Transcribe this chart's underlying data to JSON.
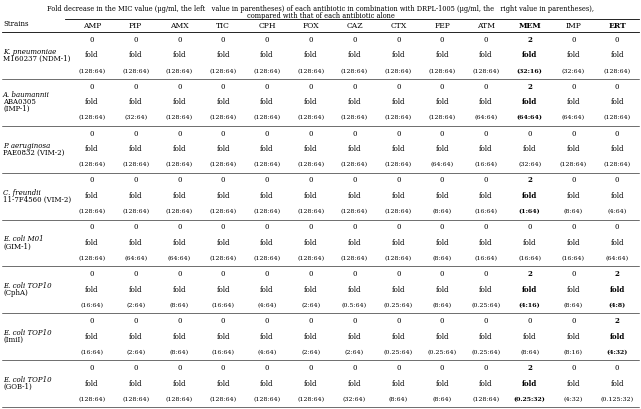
{
  "title_line1": "Fold decrease in the MIC value (μg/ml, the left   value in parentheses) of each antibiotic in combination with DRPL-1005 (μg/ml, the   right value in parentheses),",
  "title_line2": "compared with that of each antibiotic alone",
  "col_headers": [
    "AMP",
    "PIP",
    "AMX",
    "TIC",
    "CPH",
    "FOX",
    "CAZ",
    "CTX",
    "FEP",
    "ATM",
    "MEM",
    "IMP",
    "ERT"
  ],
  "col_headers_bold": [
    false,
    false,
    false,
    false,
    false,
    false,
    false,
    false,
    false,
    false,
    true,
    false,
    true
  ],
  "strains": [
    {
      "name_lines": [
        "K. pneumoniae",
        "M160237 (NDM-1)"
      ],
      "name_italic": [
        true,
        false
      ],
      "row1": [
        "0",
        "0",
        "0",
        "0",
        "0",
        "0",
        "0",
        "0",
        "0",
        "0",
        "2",
        "0",
        "0"
      ],
      "row1_bold": [
        false,
        false,
        false,
        false,
        false,
        false,
        false,
        false,
        false,
        false,
        true,
        false,
        false
      ],
      "row2": [
        "fold",
        "fold",
        "fold",
        "fold",
        "fold",
        "fold",
        "fold",
        "fold",
        "fold",
        "fold",
        "fold",
        "fold",
        "fold"
      ],
      "row2_bold": [
        false,
        false,
        false,
        false,
        false,
        false,
        false,
        false,
        false,
        false,
        true,
        false,
        false
      ],
      "row3": [
        "(128:64)",
        "(128:64)",
        "(128:64)",
        "(128:64)",
        "(128:64)",
        "(128:64)",
        "(128:64)",
        "(128:64)",
        "(128:64)",
        "(128:64)",
        "(32:16)",
        "(32:64)",
        "(128:64)"
      ],
      "row3_bold": [
        false,
        false,
        false,
        false,
        false,
        false,
        false,
        false,
        false,
        false,
        true,
        false,
        false
      ]
    },
    {
      "name_lines": [
        "A. baumannii",
        "ABA0305",
        "(IMP-1)"
      ],
      "name_italic": [
        true,
        false,
        false
      ],
      "row1": [
        "0",
        "0",
        "0",
        "0",
        "0",
        "0",
        "0",
        "0",
        "0",
        "0",
        "2",
        "0",
        "0"
      ],
      "row1_bold": [
        false,
        false,
        false,
        false,
        false,
        false,
        false,
        false,
        false,
        false,
        true,
        false,
        false
      ],
      "row2": [
        "fold",
        "fold",
        "fold",
        "fold",
        "fold",
        "fold",
        "fold",
        "fold",
        "fold",
        "fold",
        "fold",
        "fold",
        "fold"
      ],
      "row2_bold": [
        false,
        false,
        false,
        false,
        false,
        false,
        false,
        false,
        false,
        false,
        true,
        false,
        false
      ],
      "row3": [
        "(128:64)",
        "(32:64)",
        "(128:64)",
        "(128:64)",
        "(128:64)",
        "(128:64)",
        "(128:64)",
        "(128:64)",
        "(128:64)",
        "(64:64)",
        "(64:64)",
        "(64:64)",
        "(128:64)"
      ],
      "row3_bold": [
        false,
        false,
        false,
        false,
        false,
        false,
        false,
        false,
        false,
        false,
        true,
        false,
        false
      ]
    },
    {
      "name_lines": [
        "P. aeruginosa",
        "PAE0832 (VIM-2)"
      ],
      "name_italic": [
        true,
        false
      ],
      "row1": [
        "0",
        "0",
        "0",
        "0",
        "0",
        "0",
        "0",
        "0",
        "0",
        "0",
        "0",
        "0",
        "0"
      ],
      "row1_bold": [
        false,
        false,
        false,
        false,
        false,
        false,
        false,
        false,
        false,
        false,
        false,
        false,
        false
      ],
      "row2": [
        "fold",
        "fold",
        "fold",
        "fold",
        "fold",
        "fold",
        "fold",
        "fold",
        "fold",
        "fold",
        "fold",
        "fold",
        "fold"
      ],
      "row2_bold": [
        false,
        false,
        false,
        false,
        false,
        false,
        false,
        false,
        false,
        false,
        false,
        false,
        false
      ],
      "row3": [
        "(128:64)",
        "(128:64)",
        "(128:64)",
        "(128:64)",
        "(128:64)",
        "(128:64)",
        "(128:64)",
        "(128:64)",
        "(64:64)",
        "(16:64)",
        "(32:64)",
        "(128:64)",
        "(128:64)"
      ],
      "row3_bold": [
        false,
        false,
        false,
        false,
        false,
        false,
        false,
        false,
        false,
        false,
        false,
        false,
        false
      ]
    },
    {
      "name_lines": [
        "C. freundii",
        "11-7F4560 (VIM-2)"
      ],
      "name_italic": [
        true,
        false
      ],
      "row1": [
        "0",
        "0",
        "0",
        "0",
        "0",
        "0",
        "0",
        "0",
        "0",
        "0",
        "2",
        "0",
        "0"
      ],
      "row1_bold": [
        false,
        false,
        false,
        false,
        false,
        false,
        false,
        false,
        false,
        false,
        true,
        false,
        false
      ],
      "row2": [
        "fold",
        "fold",
        "fold",
        "fold",
        "fold",
        "fold",
        "fold",
        "fold",
        "fold",
        "fold",
        "fold",
        "fold",
        "fold"
      ],
      "row2_bold": [
        false,
        false,
        false,
        false,
        false,
        false,
        false,
        false,
        false,
        false,
        true,
        false,
        false
      ],
      "row3": [
        "(128:64)",
        "(128:64)",
        "(128:64)",
        "(128:64)",
        "(128:64)",
        "(128:64)",
        "(128:64)",
        "(128:64)",
        "(8:64)",
        "(16:64)",
        "(1:64)",
        "(8:64)",
        "(4:64)"
      ],
      "row3_bold": [
        false,
        false,
        false,
        false,
        false,
        false,
        false,
        false,
        false,
        false,
        true,
        false,
        false
      ]
    },
    {
      "name_lines": [
        "E. coli M01",
        "(GIM-1)"
      ],
      "name_italic": [
        true,
        false
      ],
      "row1": [
        "0",
        "0",
        "0",
        "0",
        "0",
        "0",
        "0",
        "0",
        "0",
        "0",
        "0",
        "0",
        "0"
      ],
      "row1_bold": [
        false,
        false,
        false,
        false,
        false,
        false,
        false,
        false,
        false,
        false,
        false,
        false,
        false
      ],
      "row2": [
        "fold",
        "fold",
        "fold",
        "fold",
        "fold",
        "fold",
        "fold",
        "fold",
        "fold",
        "fold",
        "fold",
        "fold",
        "fold"
      ],
      "row2_bold": [
        false,
        false,
        false,
        false,
        false,
        false,
        false,
        false,
        false,
        false,
        false,
        false,
        false
      ],
      "row3": [
        "(128:64)",
        "(64:64)",
        "(64:64)",
        "(128:64)",
        "(128:64)",
        "(128:64)",
        "(128:64)",
        "(128:64)",
        "(8:64)",
        "(16:64)",
        "(16:64)",
        "(16:64)",
        "(64:64)"
      ],
      "row3_bold": [
        false,
        false,
        false,
        false,
        false,
        false,
        false,
        false,
        false,
        false,
        false,
        false,
        false
      ]
    },
    {
      "name_lines": [
        "E. coli TOP10",
        "(CphA)"
      ],
      "name_italic": [
        true,
        false
      ],
      "row1": [
        "0",
        "0",
        "0",
        "0",
        "0",
        "0",
        "0",
        "0",
        "0",
        "0",
        "2",
        "0",
        "2"
      ],
      "row1_bold": [
        false,
        false,
        false,
        false,
        false,
        false,
        false,
        false,
        false,
        false,
        true,
        false,
        true
      ],
      "row2": [
        "fold",
        "fold",
        "fold",
        "fold",
        "fold",
        "fold",
        "fold",
        "fold",
        "fold",
        "fold",
        "fold",
        "fold",
        "fold"
      ],
      "row2_bold": [
        false,
        false,
        false,
        false,
        false,
        false,
        false,
        false,
        false,
        false,
        true,
        false,
        true
      ],
      "row3": [
        "(16:64)",
        "(2:64)",
        "(8:64)",
        "(16:64)",
        "(4:64)",
        "(2:64)",
        "(0.5:64)",
        "(0.25:64)",
        "(8:64)",
        "(0.25:64)",
        "(4:16)",
        "(8:64)",
        "(4:8)"
      ],
      "row3_bold": [
        false,
        false,
        false,
        false,
        false,
        false,
        false,
        false,
        false,
        false,
        true,
        false,
        true
      ]
    },
    {
      "name_lines": [
        "E. coli TOP10",
        "(ImiI)"
      ],
      "name_italic": [
        true,
        false
      ],
      "row1": [
        "0",
        "0",
        "0",
        "0",
        "0",
        "0",
        "0",
        "0",
        "0",
        "0",
        "0",
        "0",
        "2"
      ],
      "row1_bold": [
        false,
        false,
        false,
        false,
        false,
        false,
        false,
        false,
        false,
        false,
        false,
        false,
        true
      ],
      "row2": [
        "fold",
        "fold",
        "fold",
        "fold",
        "fold",
        "fold",
        "fold",
        "fold",
        "fold",
        "fold",
        "fold",
        "fold",
        "fold"
      ],
      "row2_bold": [
        false,
        false,
        false,
        false,
        false,
        false,
        false,
        false,
        false,
        false,
        false,
        false,
        true
      ],
      "row3": [
        "(16:64)",
        "(2:64)",
        "(8:64)",
        "(16:64)",
        "(4:64)",
        "(2:64)",
        "(2:64)",
        "(0.25:64)",
        "(0.25:64)",
        "(0.25:64)",
        "(8:64)",
        "(8:16)",
        "(4:32)"
      ],
      "row3_bold": [
        false,
        false,
        false,
        false,
        false,
        false,
        false,
        false,
        false,
        false,
        false,
        false,
        true
      ]
    },
    {
      "name_lines": [
        "E. coli TOP10",
        "(GOB-1)"
      ],
      "name_italic": [
        true,
        false
      ],
      "row1": [
        "0",
        "0",
        "0",
        "0",
        "0",
        "0",
        "0",
        "0",
        "0",
        "0",
        "2",
        "0",
        "0"
      ],
      "row1_bold": [
        false,
        false,
        false,
        false,
        false,
        false,
        false,
        false,
        false,
        false,
        true,
        false,
        false
      ],
      "row2": [
        "fold",
        "fold",
        "fold",
        "fold",
        "fold",
        "fold",
        "fold",
        "fold",
        "fold",
        "fold",
        "fold",
        "fold",
        "fold"
      ],
      "row2_bold": [
        false,
        false,
        false,
        false,
        false,
        false,
        false,
        false,
        false,
        false,
        true,
        false,
        false
      ],
      "row3": [
        "(128:64)",
        "(128:64)",
        "(128:64)",
        "(128:64)",
        "(128:64)",
        "(128:64)",
        "(32:64)",
        "(8:64)",
        "(8:64)",
        "(128:64)",
        "(0.25:32)",
        "(4:32)",
        "(0.125:32)"
      ],
      "row3_bold": [
        false,
        false,
        false,
        false,
        false,
        false,
        false,
        false,
        false,
        false,
        true,
        false,
        false
      ]
    }
  ],
  "figwidth": 6.41,
  "figheight": 4.09,
  "dpi": 100,
  "bg_color": "#ffffff",
  "text_color": "#000000",
  "line_color": "#000000",
  "fs_title": 4.8,
  "fs_header": 5.5,
  "fs_cell": 5.0,
  "fs_strain": 5.0,
  "fs_cell3": 4.5
}
